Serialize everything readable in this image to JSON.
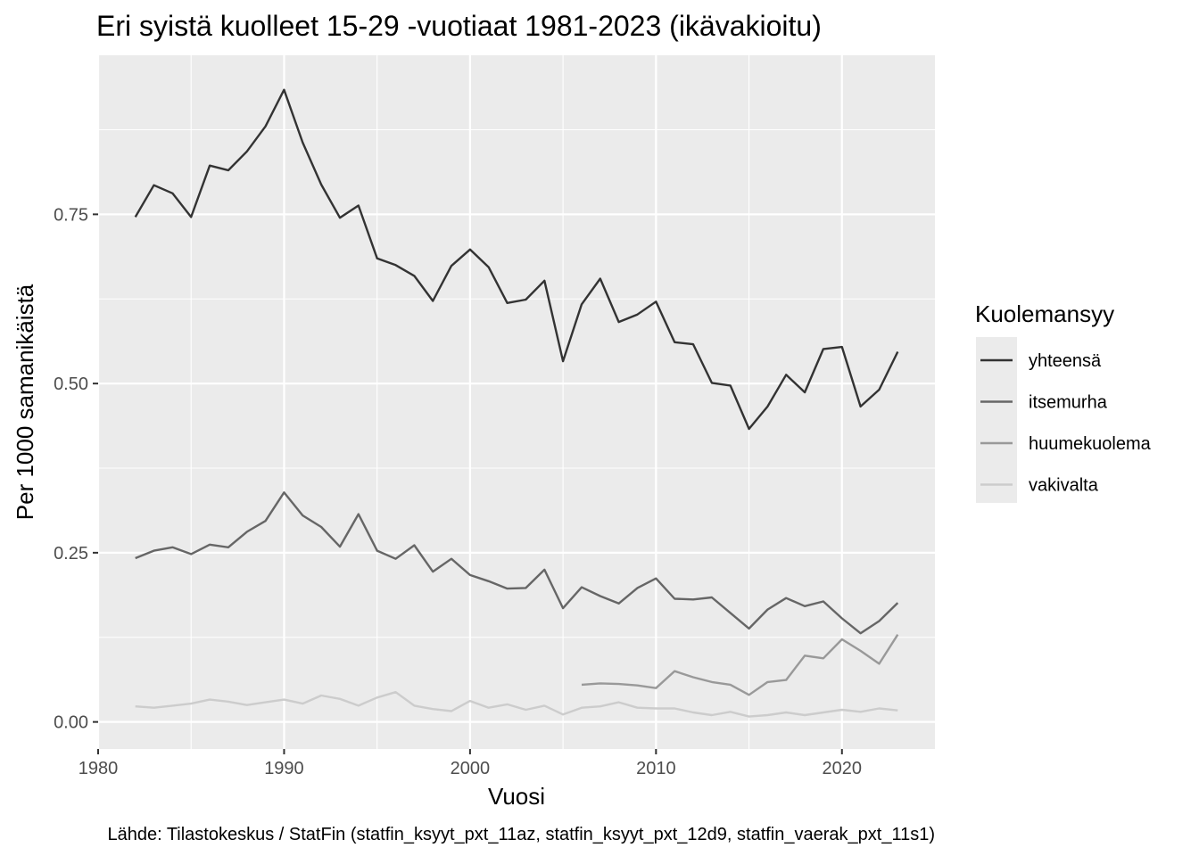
{
  "chart_data": {
    "type": "line",
    "title": "Eri syistä kuolleet 15-29 -vuotiaat 1981-2023 (ikävakioitu)",
    "xlabel": "Vuosi",
    "ylabel": "Per 1000 samanikäistä",
    "caption": "Lähde: Tilastokeskus / StatFin (statfin_ksyyt_pxt_11az, statfin_ksyyt_pxt_12d9, statfin_vaerak_pxt_11s1)",
    "xlim": [
      1980,
      2025
    ],
    "ylim": [
      -0.04,
      0.985
    ],
    "x_ticks": [
      1980,
      1990,
      2000,
      2010,
      2020
    ],
    "x_tick_labels": [
      "1980",
      "1990",
      "2000",
      "2010",
      "2020"
    ],
    "y_ticks": [
      0,
      0.25,
      0.5,
      0.75
    ],
    "y_tick_labels": [
      "0.00",
      "0.25",
      "0.50",
      "0.75"
    ],
    "grid": true,
    "legend": {
      "title": "Kuolemansyy",
      "position": "right"
    },
    "series": [
      {
        "name": "yhteensä",
        "color": "#333333",
        "x": [
          1982,
          1983,
          1984,
          1985,
          1986,
          1987,
          1988,
          1989,
          1990,
          1991,
          1992,
          1993,
          1994,
          1995,
          1996,
          1997,
          1998,
          1999,
          2000,
          2001,
          2002,
          2003,
          2004,
          2005,
          2006,
          2007,
          2008,
          2009,
          2010,
          2011,
          2012,
          2013,
          2014,
          2015,
          2016,
          2017,
          2018,
          2019,
          2020,
          2021,
          2022,
          2023
        ],
        "y": [
          0.746,
          0.793,
          0.781,
          0.746,
          0.822,
          0.815,
          0.843,
          0.88,
          0.934,
          0.856,
          0.794,
          0.745,
          0.763,
          0.685,
          0.675,
          0.659,
          0.622,
          0.674,
          0.698,
          0.672,
          0.619,
          0.624,
          0.652,
          0.533,
          0.617,
          0.655,
          0.591,
          0.602,
          0.621,
          0.561,
          0.558,
          0.501,
          0.497,
          0.433,
          0.466,
          0.513,
          0.487,
          0.551,
          0.554,
          0.466,
          0.491,
          0.547
        ]
      },
      {
        "name": "itsemurha",
        "color": "#666666",
        "x": [
          1982,
          1983,
          1984,
          1985,
          1986,
          1987,
          1988,
          1989,
          1990,
          1991,
          1992,
          1993,
          1994,
          1995,
          1996,
          1997,
          1998,
          1999,
          2000,
          2001,
          2002,
          2003,
          2004,
          2005,
          2006,
          2007,
          2008,
          2009,
          2010,
          2011,
          2012,
          2013,
          2014,
          2015,
          2016,
          2017,
          2018,
          2019,
          2020,
          2021,
          2022,
          2023
        ],
        "y": [
          0.242,
          0.253,
          0.258,
          0.248,
          0.262,
          0.258,
          0.281,
          0.297,
          0.339,
          0.305,
          0.288,
          0.259,
          0.307,
          0.253,
          0.241,
          0.261,
          0.222,
          0.241,
          0.217,
          0.208,
          0.197,
          0.198,
          0.225,
          0.168,
          0.199,
          0.186,
          0.175,
          0.198,
          0.212,
          0.182,
          0.181,
          0.184,
          0.161,
          0.138,
          0.166,
          0.183,
          0.171,
          0.178,
          0.153,
          0.131,
          0.149,
          0.176
        ]
      },
      {
        "name": "huumekuolema",
        "color": "#999999",
        "x": [
          2006,
          2007,
          2008,
          2009,
          2010,
          2011,
          2012,
          2013,
          2014,
          2015,
          2016,
          2017,
          2018,
          2019,
          2020,
          2021,
          2022,
          2023
        ],
        "y": [
          0.055,
          0.057,
          0.056,
          0.054,
          0.05,
          0.075,
          0.066,
          0.059,
          0.055,
          0.04,
          0.059,
          0.062,
          0.098,
          0.094,
          0.122,
          0.105,
          0.086,
          0.129
        ]
      },
      {
        "name": "vakivalta",
        "color": "#cccccc",
        "x": [
          1982,
          1983,
          1984,
          1985,
          1986,
          1987,
          1988,
          1989,
          1990,
          1991,
          1992,
          1993,
          1994,
          1995,
          1996,
          1997,
          1998,
          1999,
          2000,
          2001,
          2002,
          2003,
          2004,
          2005,
          2006,
          2007,
          2008,
          2009,
          2010,
          2011,
          2012,
          2013,
          2014,
          2015,
          2016,
          2017,
          2018,
          2019,
          2020,
          2021,
          2022,
          2023
        ],
        "y": [
          0.023,
          0.021,
          0.024,
          0.027,
          0.033,
          0.03,
          0.025,
          0.029,
          0.033,
          0.027,
          0.039,
          0.034,
          0.024,
          0.036,
          0.044,
          0.024,
          0.019,
          0.016,
          0.031,
          0.021,
          0.026,
          0.018,
          0.024,
          0.011,
          0.021,
          0.023,
          0.029,
          0.021,
          0.02,
          0.02,
          0.014,
          0.01,
          0.015,
          0.008,
          0.01,
          0.014,
          0.01,
          0.014,
          0.018,
          0.015,
          0.02,
          0.017
        ]
      }
    ]
  }
}
